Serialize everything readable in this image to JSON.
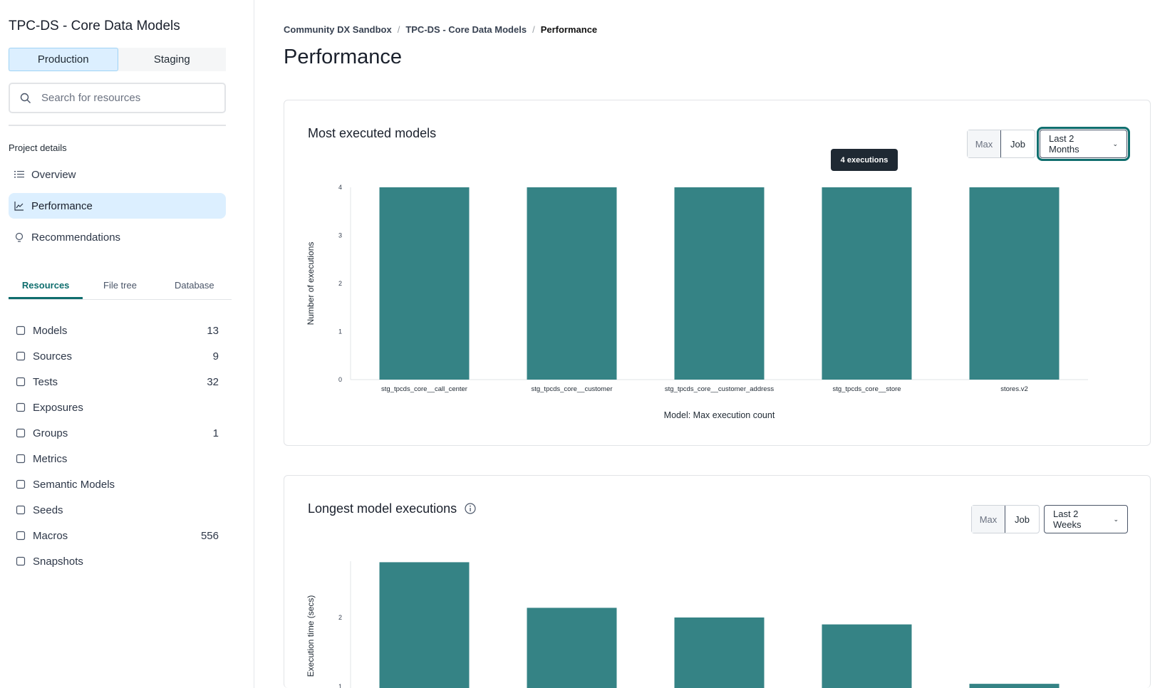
{
  "sidebar": {
    "project_title": "TPC-DS - Core Data Models",
    "env_tabs": [
      "Production",
      "Staging"
    ],
    "search_placeholder": "Search for resources",
    "section_label": "Project details",
    "nav": [
      {
        "label": "Overview",
        "icon": "list-icon"
      },
      {
        "label": "Performance",
        "icon": "chart-line-icon"
      },
      {
        "label": "Recommendations",
        "icon": "lightbulb-icon"
      }
    ],
    "tabs": [
      "Resources",
      "File tree",
      "Database"
    ],
    "resources": [
      {
        "label": "Models",
        "count": "13",
        "icon": "cube-icon"
      },
      {
        "label": "Sources",
        "count": "9",
        "icon": "database-icon"
      },
      {
        "label": "Tests",
        "count": "32",
        "icon": "clipboard-icon"
      },
      {
        "label": "Exposures",
        "count": "",
        "icon": "gauge-icon"
      },
      {
        "label": "Groups",
        "count": "1",
        "icon": "grid-icon"
      },
      {
        "label": "Metrics",
        "count": "",
        "icon": "bar-chart-icon"
      },
      {
        "label": "Semantic Models",
        "count": "",
        "icon": "graph-icon"
      },
      {
        "label": "Seeds",
        "count": "",
        "icon": "sprout-icon"
      },
      {
        "label": "Macros",
        "count": "556",
        "icon": "file-icon"
      },
      {
        "label": "Snapshots",
        "count": "",
        "icon": "camera-icon"
      }
    ]
  },
  "breadcrumb": [
    "Community DX Sandbox",
    "TPC-DS - Core Data Models",
    "Performance"
  ],
  "page_title": "Performance",
  "colors": {
    "bar": "#358385",
    "accent": "#0f6e6e"
  },
  "cards": [
    {
      "title": "Most executed models",
      "seg": [
        "Max",
        "Job"
      ],
      "range": "Last 2 Months",
      "tooltip": "4 executions"
    },
    {
      "title": "Longest model executions",
      "seg": [
        "Max",
        "Job"
      ],
      "range": "Last 2 Weeks"
    }
  ],
  "chart_data": [
    {
      "type": "bar",
      "categories": [
        "stg_tpcds_core__call_center",
        "stg_tpcds_core__customer",
        "stg_tpcds_core__customer_address",
        "stg_tpcds_core__store",
        "stores.v2"
      ],
      "values": [
        4,
        4,
        4,
        4,
        4
      ],
      "xlabel": "Model: Max execution count",
      "ylabel": "Number of executions",
      "ylim": [
        0,
        4
      ],
      "yticks": [
        0,
        1,
        2,
        3,
        4
      ]
    },
    {
      "type": "bar",
      "values": [
        2.8,
        2.14,
        2.0,
        1.9,
        1.04
      ],
      "ylabel": "Execution time (secs)",
      "yticks": [
        1,
        2
      ]
    }
  ]
}
